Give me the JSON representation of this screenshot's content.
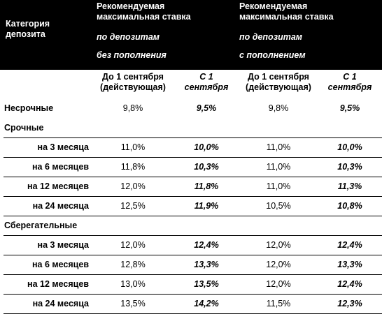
{
  "header": {
    "category": [
      "Категория",
      "депозита"
    ],
    "groups": [
      {
        "title": [
          "Рекомендуемая",
          "максимальная ставка"
        ],
        "subtitle": [
          "по депозитам",
          "без пополнения"
        ]
      },
      {
        "title": [
          "Рекомендуемая",
          "максимальная ставка"
        ],
        "subtitle": [
          "по депозитам",
          "с пополнением"
        ]
      }
    ],
    "columns": [
      [
        "До 1 сентября",
        "(действующая)"
      ],
      [
        "С 1",
        "сентября"
      ],
      [
        "До 1 сентября",
        "(действующая)"
      ],
      [
        "С 1",
        "сентября"
      ]
    ]
  },
  "table": {
    "top": {
      "label": "Несрочные",
      "values": [
        "9,8%",
        "9,5%",
        "9,8%",
        "9,5%"
      ]
    },
    "sections": [
      {
        "title": "Срочные",
        "rows": [
          {
            "label": "на 3 месяца",
            "values": [
              "11,0%",
              "10,0%",
              "11,0%",
              "10,0%"
            ]
          },
          {
            "label": "на 6 месяцев",
            "values": [
              "11,8%",
              "10,3%",
              "11,0%",
              "10,3%"
            ]
          },
          {
            "label": "на 12 месяцев",
            "values": [
              "12,0%",
              "11,8%",
              "11,0%",
              "11,3%"
            ]
          },
          {
            "label": "на 24 месяца",
            "values": [
              "12,5%",
              "11,9%",
              "10,5%",
              "10,8%"
            ]
          }
        ]
      },
      {
        "title": "Сберегательные",
        "rows": [
          {
            "label": "на 3 месяца",
            "values": [
              "12,0%",
              "12,4%",
              "12,0%",
              "12,4%"
            ]
          },
          {
            "label": "на 6 месяцев",
            "values": [
              "12,8%",
              "13,3%",
              "12,0%",
              "13,3%"
            ]
          },
          {
            "label": "на 12 месяцев",
            "values": [
              "13,0%",
              "13,5%",
              "12,0%",
              "12,4%"
            ]
          },
          {
            "label": "на 24 месяца",
            "values": [
              "13,5%",
              "14,2%",
              "11,5%",
              "12,3%"
            ]
          }
        ]
      }
    ]
  }
}
